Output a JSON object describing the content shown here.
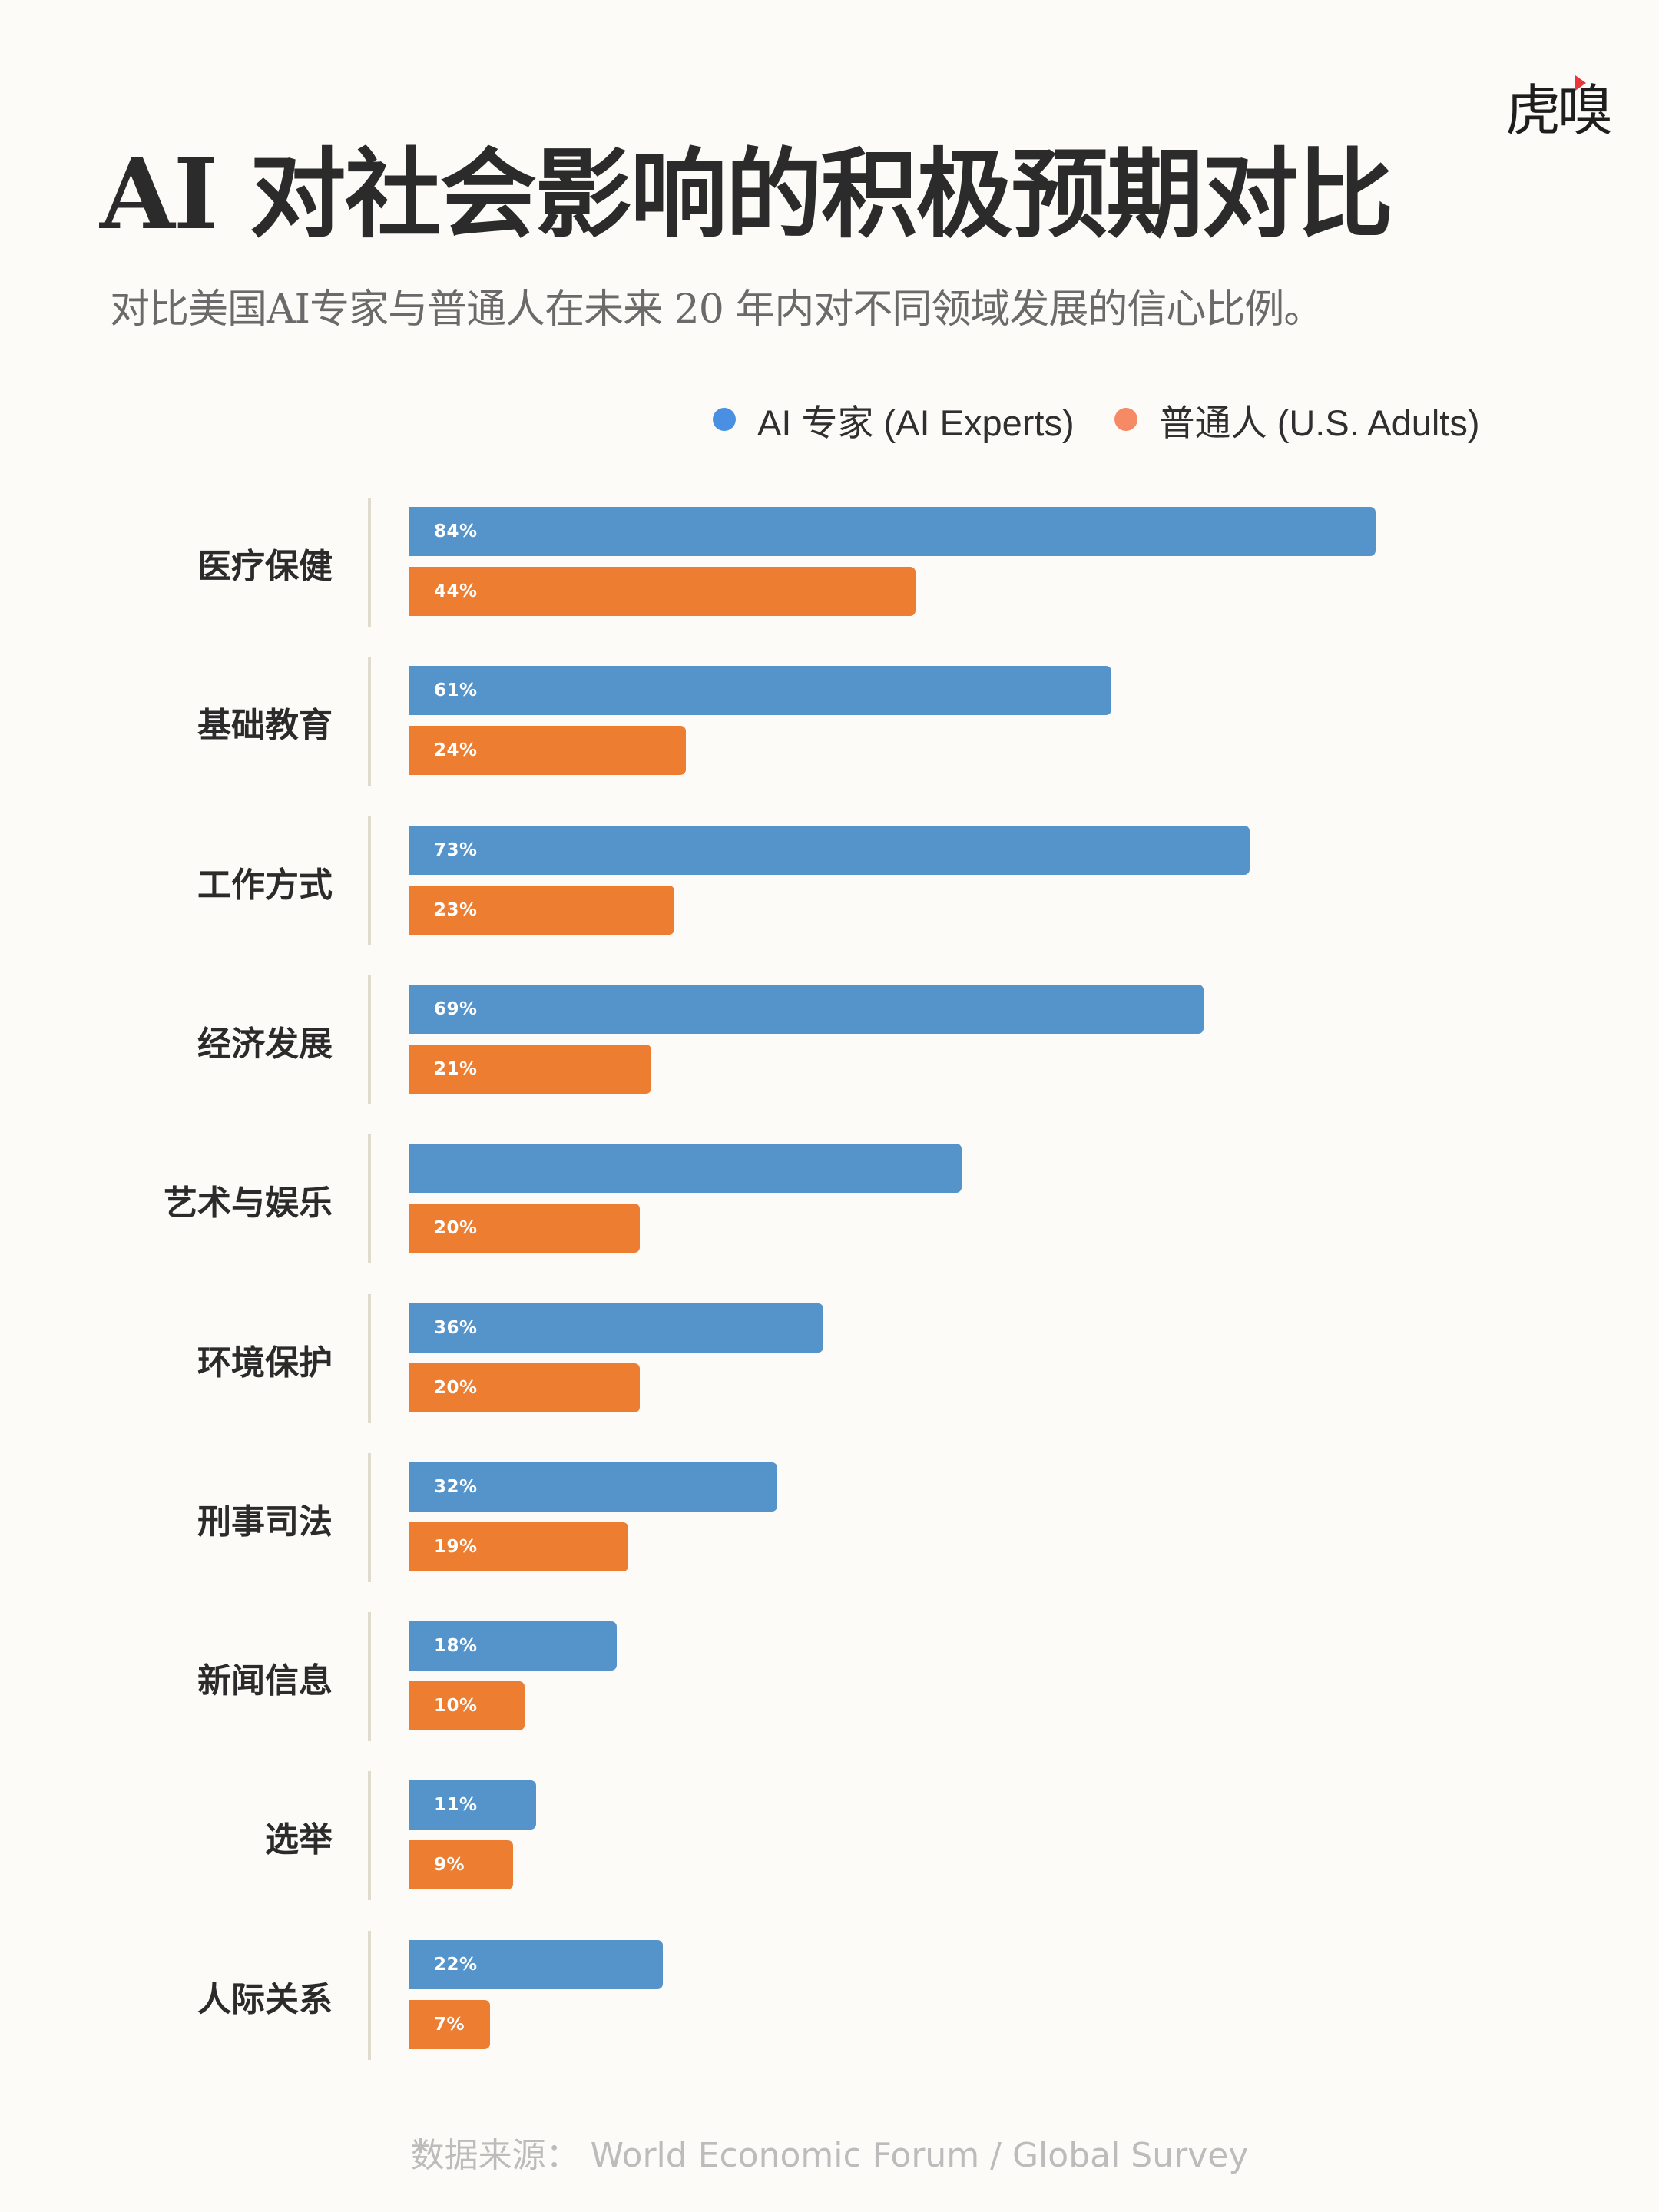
{
  "logo": {
    "text": "虎嗅",
    "accent": "#e8373b"
  },
  "header": {
    "title": "AI 对社会影响的积极预期对比",
    "subtitle": "对比美国AI专家与普通人在未来 20 年内对不同领域发展的信心比例。"
  },
  "legend": {
    "items": [
      {
        "label": "AI 专家 (AI Experts)",
        "color": "#4a90e2"
      },
      {
        "label": "普通人 (U.S. Adults)",
        "color": "#f58a65"
      }
    ]
  },
  "footer": {
    "source": "数据来源：  World Economic Forum / Global Survey"
  },
  "chart_data": {
    "type": "bar",
    "orientation": "horizontal",
    "title": "AI 对社会影响的积极预期对比",
    "subtitle": "对比美国AI专家与普通人在未来 20 年内对不同领域发展的信心比例。",
    "xlabel": "",
    "ylabel": "",
    "xlim": [
      0,
      100
    ],
    "grid": false,
    "legend_position": "top-right",
    "categories": [
      "医疗保健",
      "基础教育",
      "工作方式",
      "经济发展",
      "艺术与娱乐",
      "环境保护",
      "刑事司法",
      "新闻信息",
      "选举",
      "人际关系"
    ],
    "series": [
      {
        "name": "AI 专家 (AI Experts)",
        "color": "#5593cb",
        "values": [
          84,
          61,
          73,
          69,
          48,
          36,
          32,
          18,
          11,
          22
        ],
        "labels": [
          "84%",
          "61%",
          "73%",
          "69%",
          "",
          "36%",
          "32%",
          "18%",
          "11%",
          "22%"
        ]
      },
      {
        "name": "普通人 (U.S. Adults)",
        "color": "#ec7d31",
        "values": [
          44,
          24,
          23,
          21,
          20,
          20,
          19,
          10,
          9,
          7
        ],
        "labels": [
          "44%",
          "24%",
          "23%",
          "21%",
          "20%",
          "20%",
          "19%",
          "10%",
          "9%",
          "7%"
        ]
      }
    ],
    "source": "World Economic Forum / Global Survey"
  }
}
